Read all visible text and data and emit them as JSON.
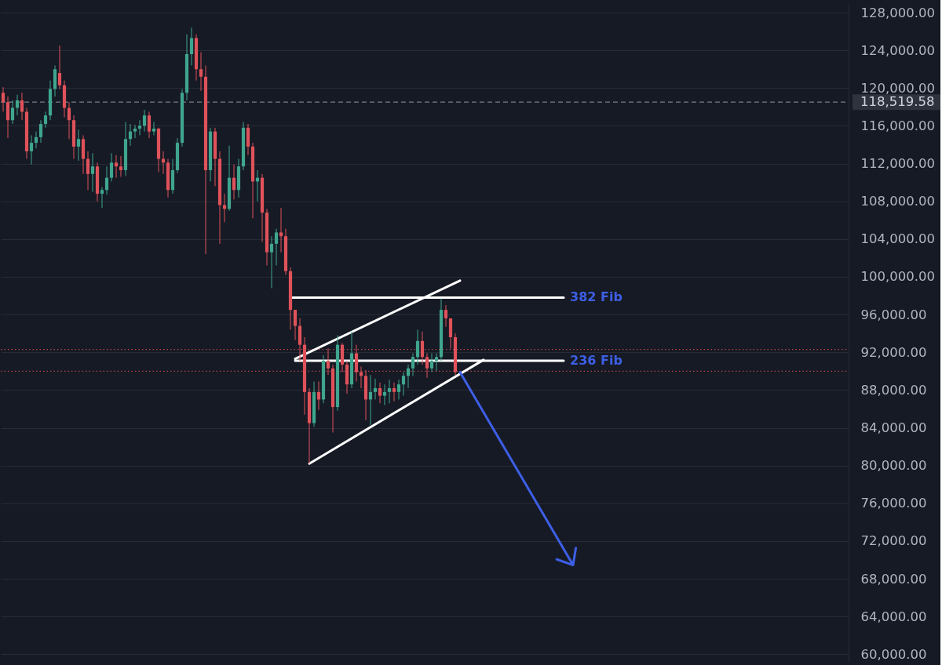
{
  "chart_data": {
    "type": "candlestick",
    "categories": [
      null,
      null,
      null,
      null,
      null,
      null,
      null,
      null,
      null,
      null,
      null,
      null,
      null,
      null,
      null,
      null,
      null,
      null,
      null,
      null,
      null,
      null,
      null,
      null,
      null,
      null,
      null,
      null,
      null,
      null,
      null,
      null,
      null,
      null,
      null,
      null,
      null,
      null,
      null,
      null,
      null,
      null,
      null,
      null,
      null,
      null,
      null,
      null,
      null,
      null,
      null,
      null,
      null,
      null,
      null,
      null,
      null,
      null,
      null,
      null,
      null,
      null,
      null,
      null,
      null,
      null,
      null,
      null,
      null,
      null,
      null,
      null,
      null,
      null,
      null,
      null,
      null,
      null,
      null,
      null,
      null,
      null,
      null,
      null,
      null,
      null,
      null,
      null,
      null,
      null,
      null,
      null,
      null,
      null,
      null,
      null,
      null,
      null,
      null,
      null,
      null,
      null,
      null,
      null,
      null,
      null,
      null,
      null,
      null,
      null,
      null,
      null,
      null,
      null,
      null,
      null,
      null,
      null,
      null,
      null,
      null,
      null,
      null,
      null,
      null,
      null,
      null,
      null,
      null,
      null,
      null,
      null,
      null,
      null,
      null,
      null,
      null,
      null,
      null,
      null,
      null,
      null,
      null,
      null,
      null,
      null,
      null,
      null,
      null,
      null,
      null,
      null,
      null,
      null,
      null,
      null,
      null,
      null,
      null,
      null,
      null,
      null,
      null,
      null,
      null,
      null,
      null,
      null,
      null,
      null,
      null,
      null,
      null,
      null,
      null,
      null,
      null,
      null,
      null,
      null
    ],
    "ohlc": [
      [
        119500,
        120100,
        117500,
        118500
      ],
      [
        118500,
        119100,
        114700,
        116600
      ],
      [
        116600,
        118700,
        116200,
        117900
      ],
      [
        117900,
        119300,
        117100,
        118700
      ],
      [
        118700,
        119500,
        116600,
        117500
      ],
      [
        117500,
        117900,
        112500,
        113300
      ],
      [
        113300,
        115000,
        111900,
        114200
      ],
      [
        114200,
        115400,
        113600,
        114800
      ],
      [
        114800,
        116600,
        114200,
        116200
      ],
      [
        116200,
        117500,
        115800,
        117100
      ],
      [
        117100,
        120800,
        116600,
        119900
      ],
      [
        119900,
        122400,
        119100,
        122000
      ],
      [
        121600,
        124500,
        119900,
        120300
      ],
      [
        120300,
        120800,
        116900,
        117900
      ],
      [
        117900,
        118500,
        114600,
        116600
      ],
      [
        116600,
        117100,
        112500,
        113800
      ],
      [
        113800,
        115600,
        112300,
        114600
      ],
      [
        114600,
        115000,
        110900,
        112500
      ],
      [
        112500,
        113300,
        109200,
        110900
      ],
      [
        110900,
        113100,
        109000,
        111700
      ],
      [
        111700,
        112100,
        108000,
        108800
      ],
      [
        108800,
        109500,
        107300,
        109200
      ],
      [
        109200,
        111700,
        108700,
        110500
      ],
      [
        110500,
        113100,
        110100,
        112100
      ],
      [
        112100,
        112900,
        110500,
        111700
      ],
      [
        111700,
        112800,
        110600,
        111300
      ],
      [
        111300,
        116400,
        110700,
        114600
      ],
      [
        114600,
        116200,
        113900,
        115400
      ],
      [
        115400,
        116100,
        114700,
        115700
      ],
      [
        115700,
        116600,
        115000,
        116000
      ],
      [
        116000,
        117700,
        115400,
        117100
      ],
      [
        117100,
        117500,
        114700,
        115400
      ],
      [
        115400,
        116400,
        115000,
        115700
      ],
      [
        115700,
        115800,
        111100,
        112500
      ],
      [
        112500,
        113300,
        110900,
        112100
      ],
      [
        112100,
        112500,
        108400,
        109200
      ],
      [
        109200,
        112500,
        108800,
        111300
      ],
      [
        111300,
        114700,
        111000,
        114200
      ],
      [
        114200,
        119900,
        113800,
        119500
      ],
      [
        119500,
        125700,
        118700,
        123600
      ],
      [
        123600,
        126400,
        122400,
        125300
      ],
      [
        125300,
        125700,
        120800,
        122000
      ],
      [
        122000,
        123800,
        119700,
        121200
      ],
      [
        121200,
        122400,
        102400,
        111300
      ],
      [
        111300,
        115800,
        110100,
        115400
      ],
      [
        115400,
        115800,
        109600,
        112500
      ],
      [
        112500,
        113300,
        103500,
        107600
      ],
      [
        107600,
        108800,
        105800,
        107200
      ],
      [
        107200,
        113900,
        107000,
        110500
      ],
      [
        110500,
        111900,
        108200,
        109200
      ],
      [
        109200,
        112500,
        108400,
        111700
      ],
      [
        111700,
        116400,
        111300,
        115800
      ],
      [
        115800,
        116200,
        112900,
        113800
      ],
      [
        113800,
        114200,
        106200,
        110100
      ],
      [
        110100,
        111300,
        108000,
        110500
      ],
      [
        110500,
        110900,
        103700,
        106800
      ],
      [
        106800,
        107200,
        101200,
        102600
      ],
      [
        102600,
        104300,
        98800,
        103500
      ],
      [
        103500,
        105100,
        101200,
        104700
      ],
      [
        104700,
        107300,
        102600,
        104300
      ],
      [
        104300,
        105100,
        100200,
        100600
      ],
      [
        100600,
        101000,
        94400,
        96500
      ],
      [
        96500,
        96500,
        93300,
        94800
      ],
      [
        94800,
        95600,
        91100,
        92800
      ],
      [
        92800,
        93600,
        85400,
        87800
      ],
      [
        87800,
        88200,
        80200,
        84500
      ],
      [
        84500,
        88900,
        84100,
        87800
      ],
      [
        87800,
        88900,
        85900,
        87000
      ],
      [
        87000,
        91700,
        86600,
        91100
      ],
      [
        91100,
        92400,
        89600,
        90300
      ],
      [
        90300,
        90700,
        83500,
        86200
      ],
      [
        86200,
        93800,
        85800,
        92800
      ],
      [
        92800,
        93000,
        89900,
        90700
      ],
      [
        90700,
        91100,
        87600,
        88600
      ],
      [
        88600,
        94200,
        88200,
        91900
      ],
      [
        91900,
        92800,
        88900,
        89900
      ],
      [
        89900,
        90500,
        88200,
        89500
      ],
      [
        89500,
        90100,
        84800,
        87000
      ],
      [
        87000,
        89600,
        84300,
        87800
      ],
      [
        87800,
        89200,
        87000,
        88200
      ],
      [
        88200,
        88800,
        86600,
        87400
      ],
      [
        87400,
        88600,
        86400,
        87800
      ],
      [
        87800,
        89100,
        86600,
        88200
      ],
      [
        88200,
        88800,
        86800,
        87800
      ],
      [
        87800,
        89100,
        87000,
        88600
      ],
      [
        88600,
        89900,
        87400,
        89500
      ],
      [
        89500,
        90700,
        88200,
        90300
      ],
      [
        90300,
        91900,
        89500,
        91500
      ],
      [
        91500,
        94400,
        90700,
        93200
      ],
      [
        93200,
        94200,
        90700,
        91500
      ],
      [
        91500,
        91900,
        89300,
        90300
      ],
      [
        90300,
        91900,
        89900,
        91100
      ],
      [
        91100,
        91900,
        90000,
        91500
      ],
      [
        91500,
        97700,
        91100,
        96500
      ],
      [
        96500,
        97000,
        94700,
        95600
      ],
      [
        95600,
        95600,
        92400,
        93600
      ],
      [
        93600,
        94000,
        89600,
        89900
      ],
      null,
      null,
      null,
      null,
      null,
      null,
      null,
      null,
      null,
      null,
      null,
      null,
      null,
      null,
      null,
      null,
      null,
      null,
      null,
      null,
      null,
      null,
      null,
      null,
      null,
      null,
      null,
      null,
      null,
      null,
      null,
      null,
      null,
      null,
      null,
      null,
      null,
      null,
      null,
      null,
      null,
      null,
      null,
      null,
      null,
      null,
      null,
      null,
      null,
      null,
      null,
      null,
      null,
      null,
      null,
      null,
      null,
      null,
      null,
      null,
      null,
      null,
      null,
      null,
      null,
      null,
      null,
      null,
      null,
      null,
      null,
      null,
      null,
      null,
      null,
      null,
      null,
      null,
      null,
      null,
      null,
      null,
      null
    ],
    "colors": [
      "#e0525a",
      "#e0525a",
      "#3fa68d",
      "#3fa68d",
      "#e0525a",
      "#e0525a",
      "#3fa68d",
      "#3fa68d",
      "#3fa68d",
      "#3fa68d",
      "#3fa68d",
      "#3fa68d",
      "#e0525a",
      "#e0525a",
      "#e0525a",
      "#e0525a",
      "#3fa68d",
      "#e0525a",
      "#e0525a",
      "#3fa68d",
      "#e0525a",
      "#3fa68d",
      "#3fa68d",
      "#3fa68d",
      "#e0525a",
      "#e0525a",
      "#3fa68d",
      "#3fa68d",
      "#3fa68d",
      "#3fa68d",
      "#3fa68d",
      "#e0525a",
      "#3fa68d",
      "#e0525a",
      "#e0525a",
      "#e0525a",
      "#3fa68d",
      "#3fa68d",
      "#3fa68d",
      "#3fa68d",
      "#3fa68d",
      "#e0525a",
      "#e0525a",
      "#e0525a",
      "#3fa68d",
      "#e0525a",
      "#e0525a",
      "#e0525a",
      "#3fa68d",
      "#e0525a",
      "#3fa68d",
      "#3fa68d",
      "#e0525a",
      "#e0525a",
      "#3fa68d",
      "#e0525a",
      "#e0525a",
      "#3fa68d",
      "#3fa68d",
      "#e0525a",
      "#e0525a",
      "#e0525a",
      "#e0525a",
      "#e0525a",
      "#e0525a",
      "#e0525a",
      "#3fa68d",
      "#e0525a",
      "#3fa68d",
      "#e0525a",
      "#e0525a",
      "#3fa68d",
      "#e0525a",
      "#e0525a",
      "#3fa68d",
      "#e0525a",
      "#e0525a",
      "#e0525a",
      "#3fa68d",
      "#3fa68d",
      "#e0525a",
      "#3fa68d",
      "#3fa68d",
      "#e0525a",
      "#3fa68d",
      "#3fa68d",
      "#3fa68d",
      "#3fa68d",
      "#3fa68d",
      "#e0525a",
      "#e0525a",
      "#3fa68d",
      "#3fa68d",
      "#3fa68d",
      "#e0525a",
      "#e0525a",
      "#e0525a",
      null,
      null,
      null,
      null,
      null,
      null,
      null,
      null,
      null,
      null,
      null,
      null,
      null,
      null,
      null,
      null,
      null,
      null,
      null,
      null,
      null,
      null,
      null,
      null,
      null,
      null,
      null,
      null,
      null,
      null,
      null,
      null,
      null,
      null,
      null,
      null,
      null,
      null,
      null,
      null,
      null,
      null,
      null,
      null,
      null,
      null,
      null,
      null,
      null,
      null,
      null,
      null,
      null,
      null,
      null,
      null,
      null,
      null,
      null,
      null,
      null,
      null,
      null,
      null,
      null,
      null,
      null,
      null,
      null,
      null,
      null,
      null,
      null,
      null,
      null,
      null,
      null,
      null,
      null,
      null,
      null,
      null,
      null
    ],
    "series": [
      {
        "name": "382 Fib",
        "type": "line",
        "color": "#ffffff",
        "values": [
          null,
          null,
          null,
          null,
          null,
          null,
          null,
          null,
          null,
          null,
          null,
          null,
          null,
          null,
          null,
          null,
          null,
          null,
          null,
          null,
          null,
          null,
          null,
          null,
          null,
          null,
          null,
          null,
          null,
          null,
          null,
          null,
          null,
          null,
          null,
          null,
          null,
          null,
          null,
          null,
          null,
          null,
          null,
          null,
          null,
          null,
          null,
          null,
          null,
          null,
          null,
          null,
          null,
          null,
          null,
          null,
          null,
          null,
          null,
          null,
          null,
          97800,
          null,
          null,
          null,
          null,
          null,
          null,
          null,
          null,
          null,
          null,
          null,
          null,
          null,
          null,
          null,
          null,
          null,
          null,
          null,
          null,
          null,
          null,
          null,
          null,
          null,
          null,
          null,
          null,
          null,
          null,
          null,
          null,
          null,
          null,
          null,
          null,
          null,
          null,
          null,
          null,
          null,
          null,
          null,
          null,
          null,
          null,
          null,
          null,
          null,
          null,
          null,
          null,
          null,
          null,
          null,
          null,
          null,
          97800,
          null,
          null,
          null,
          null,
          null,
          null,
          null,
          null,
          null,
          null,
          null,
          null,
          null,
          null,
          null,
          null,
          null,
          null,
          null,
          null,
          null,
          null,
          null,
          null,
          null,
          null,
          null,
          null,
          null,
          null,
          null,
          null,
          null,
          null,
          null,
          null,
          null,
          null,
          null,
          null,
          null,
          null,
          null,
          null,
          null,
          null,
          null,
          null,
          null,
          null,
          null,
          null,
          null,
          null,
          null,
          null,
          null,
          null,
          null,
          null
        ]
      },
      {
        "name": "236 Fib",
        "type": "line",
        "color": "#ffffff",
        "values": [
          null,
          null,
          null,
          null,
          null,
          null,
          null,
          null,
          null,
          null,
          null,
          null,
          null,
          null,
          null,
          null,
          null,
          null,
          null,
          null,
          null,
          null,
          null,
          null,
          null,
          null,
          null,
          null,
          null,
          null,
          null,
          null,
          null,
          null,
          null,
          null,
          null,
          null,
          null,
          null,
          null,
          null,
          null,
          null,
          null,
          null,
          null,
          null,
          null,
          null,
          null,
          null,
          null,
          null,
          null,
          null,
          null,
          null,
          null,
          null,
          null,
          null,
          91100,
          null,
          null,
          null,
          null,
          null,
          null,
          null,
          null,
          null,
          null,
          null,
          null,
          null,
          null,
          null,
          null,
          null,
          null,
          null,
          null,
          null,
          null,
          null,
          null,
          null,
          null,
          null,
          null,
          null,
          null,
          null,
          null,
          null,
          null,
          null,
          null,
          null,
          null,
          null,
          null,
          null,
          null,
          null,
          null,
          null,
          null,
          null,
          null,
          null,
          null,
          null,
          null,
          null,
          null,
          null,
          null,
          91100,
          null,
          null,
          null,
          null,
          null,
          null,
          null,
          null,
          null,
          null,
          null,
          null,
          null,
          null,
          null,
          null,
          null,
          null,
          null,
          null,
          null,
          null,
          null,
          null,
          null,
          null,
          null,
          null,
          null,
          null,
          null,
          null,
          null,
          null,
          null,
          null,
          null,
          null,
          null,
          null,
          null,
          null,
          null,
          null,
          null,
          null,
          null,
          null,
          null,
          null,
          null,
          null,
          null,
          null,
          null,
          null,
          null,
          null,
          null,
          null
        ]
      },
      {
        "type": "line",
        "color": "#ffffff",
        "values": [
          null,
          null,
          null,
          null,
          null,
          null,
          null,
          null,
          null,
          null,
          null,
          null,
          null,
          null,
          null,
          null,
          null,
          null,
          null,
          null,
          null,
          null,
          null,
          null,
          null,
          null,
          null,
          null,
          null,
          null,
          null,
          null,
          null,
          null,
          null,
          null,
          null,
          null,
          null,
          null,
          null,
          null,
          null,
          null,
          null,
          null,
          null,
          null,
          null,
          null,
          null,
          null,
          null,
          null,
          null,
          null,
          null,
          null,
          null,
          null,
          null,
          null,
          91300,
          null,
          null,
          null,
          null,
          null,
          null,
          null,
          null,
          null,
          null,
          null,
          null,
          null,
          null,
          null,
          null,
          null,
          null,
          null,
          null,
          null,
          null,
          null,
          null,
          null,
          null,
          null,
          null,
          null,
          null,
          null,
          null,
          null,
          null,
          99600,
          null,
          null,
          null,
          null,
          null,
          null,
          null,
          null,
          null,
          null,
          null,
          null,
          null,
          null,
          null,
          null,
          null,
          null,
          null,
          null,
          null,
          null,
          null,
          null,
          null,
          null,
          null,
          null,
          null,
          null,
          null,
          null,
          null,
          null,
          null,
          null,
          null,
          null,
          null,
          null,
          null,
          null,
          null,
          null,
          null,
          null,
          null,
          null,
          null,
          null,
          null,
          null,
          null,
          null,
          null,
          null,
          null,
          null,
          null,
          null,
          null,
          null,
          null,
          null,
          null,
          null,
          null,
          null,
          null,
          null,
          null,
          null,
          null,
          null,
          null,
          null,
          null,
          null,
          null,
          null,
          null,
          null
        ]
      },
      {
        "type": "line",
        "color": "#ffffff",
        "values": [
          null,
          null,
          null,
          null,
          null,
          null,
          null,
          null,
          null,
          null,
          null,
          null,
          null,
          null,
          null,
          null,
          null,
          null,
          null,
          null,
          null,
          null,
          null,
          null,
          null,
          null,
          null,
          null,
          null,
          null,
          null,
          null,
          null,
          null,
          null,
          null,
          null,
          null,
          null,
          null,
          null,
          null,
          null,
          null,
          null,
          null,
          null,
          null,
          null,
          null,
          null,
          null,
          null,
          null,
          null,
          null,
          null,
          null,
          null,
          null,
          null,
          null,
          null,
          null,
          null,
          80200,
          null,
          null,
          null,
          null,
          null,
          null,
          null,
          null,
          null,
          null,
          null,
          null,
          null,
          null,
          null,
          null,
          null,
          null,
          null,
          null,
          null,
          null,
          null,
          null,
          null,
          null,
          null,
          null,
          null,
          null,
          null,
          null,
          null,
          null,
          null,
          null,
          91200,
          null,
          null,
          null,
          null,
          null,
          null,
          null,
          null,
          null,
          null,
          null,
          null,
          null,
          null,
          null,
          null,
          null,
          null,
          null,
          null,
          null,
          null,
          null,
          null,
          null,
          null,
          null,
          null,
          null,
          null,
          null,
          null,
          null,
          null,
          null,
          null,
          null,
          null,
          null,
          null,
          null,
          null,
          null,
          null,
          null,
          null,
          null,
          null,
          null,
          null,
          null,
          null,
          null,
          null,
          null,
          null,
          null,
          null,
          null,
          null,
          null,
          null,
          null,
          null,
          null,
          null,
          null,
          null,
          null,
          null,
          null,
          null,
          null,
          null,
          null,
          null,
          null
        ]
      }
    ],
    "ylim": [
      59200,
      129000
    ],
    "yticks": [
      {
        "value": 60000,
        "label": "60,000.00"
      },
      {
        "value": 64000,
        "label": "64,000.00"
      },
      {
        "value": 68000,
        "label": "68,000.00"
      },
      {
        "value": 72000,
        "label": "72,000.00"
      },
      {
        "value": 76000,
        "label": "76,000.00"
      },
      {
        "value": 80000,
        "label": "80,000.00"
      },
      {
        "value": 84000,
        "label": "84,000.00"
      },
      {
        "value": 88000,
        "label": "88,000.00"
      },
      {
        "value": 92000,
        "label": "92,000.00"
      },
      {
        "value": 96000,
        "label": "96,000.00"
      },
      {
        "value": 100000,
        "label": "100,000.00"
      },
      {
        "value": 104000,
        "label": "104,000.00"
      },
      {
        "value": 108000,
        "label": "108,000.00"
      },
      {
        "value": 112000,
        "label": "112,000.00"
      },
      {
        "value": 116000,
        "label": "116,000.00"
      },
      {
        "value": 120000,
        "label": "120,000.00"
      },
      {
        "value": 124000,
        "label": "124,000.00"
      },
      {
        "value": 128000,
        "label": "128,000.00"
      }
    ],
    "ref_lines": [
      {
        "axis": "y",
        "value": 118519.58,
        "label": "118,519.58",
        "color": "#9598a1",
        "line_style": "dashed"
      },
      {
        "axis": "y",
        "value": 92300,
        "color": "#d9504f",
        "line_style": "dotted"
      },
      {
        "axis": "y",
        "value": 90000,
        "color": "#d9504f",
        "line_style": "dotted"
      }
    ],
    "grid": "y",
    "tick_labels": "y"
  }
}
